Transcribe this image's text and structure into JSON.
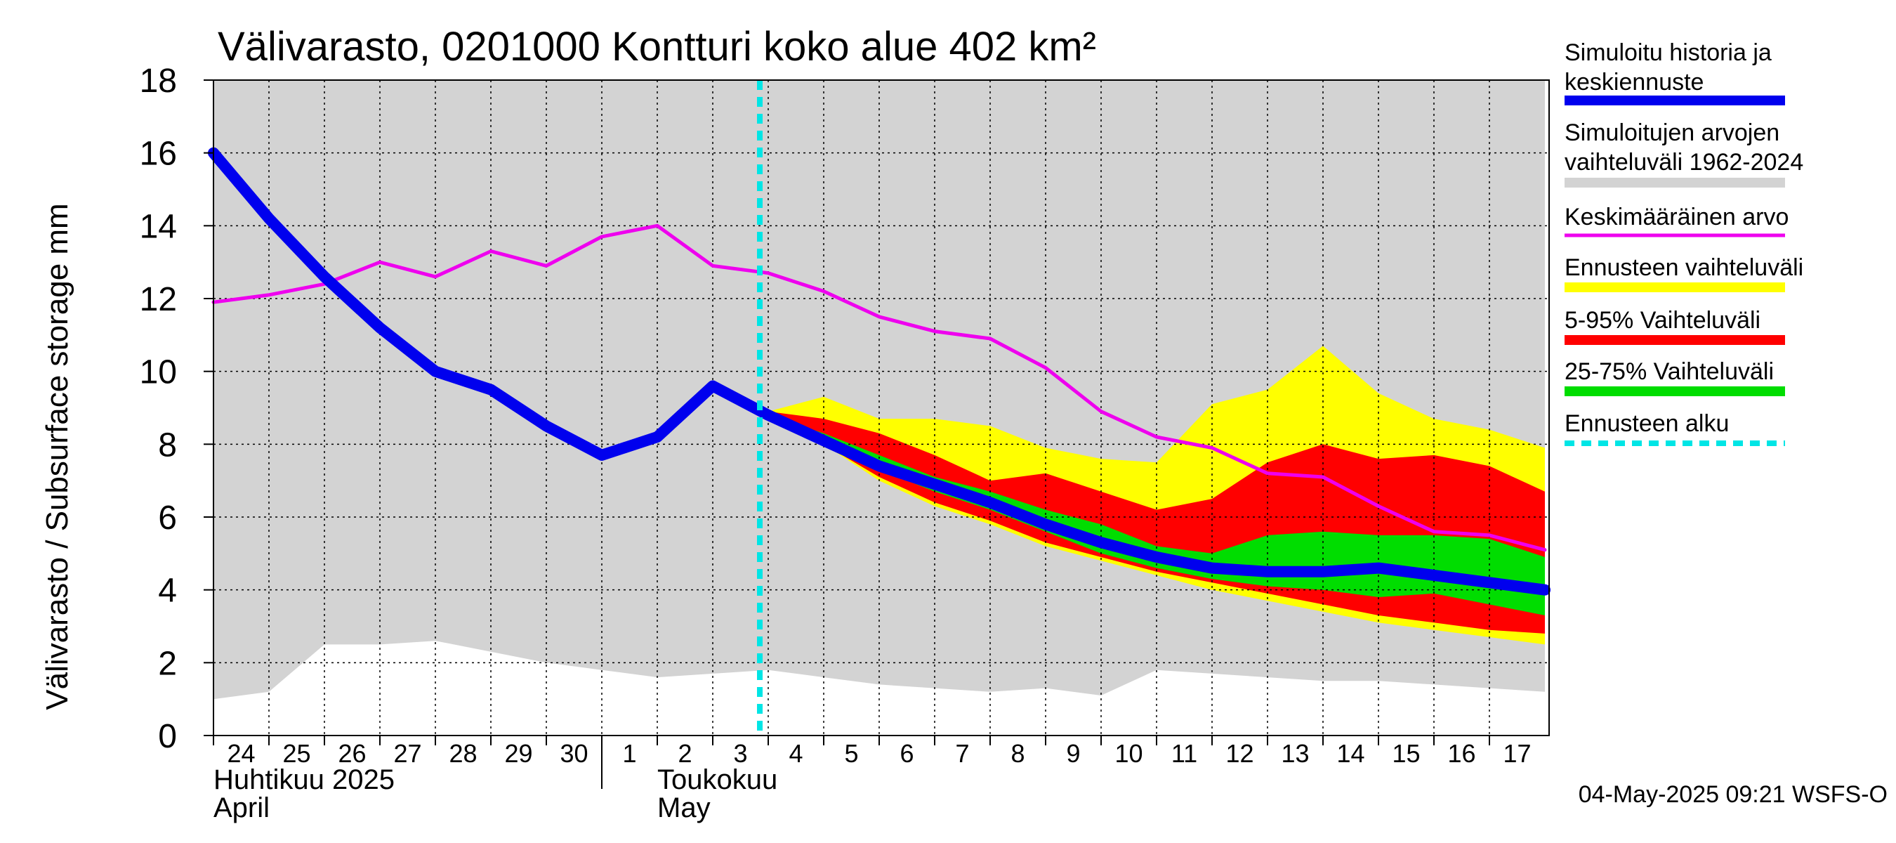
{
  "chart_data": {
    "type": "area",
    "title": "Välivarasto, 0201000 Kontturi koko alue 402 km²",
    "ylabel": "Välivarasto / Subsurface storage  mm",
    "ylim": [
      0,
      18
    ],
    "yticks": [
      0,
      2,
      4,
      6,
      8,
      10,
      12,
      14,
      16,
      18
    ],
    "grid": true,
    "legend_position": "right",
    "x_day_labels": [
      "24",
      "25",
      "26",
      "27",
      "28",
      "29",
      "30",
      "1",
      "2",
      "3",
      "4",
      "5",
      "6",
      "7",
      "8",
      "9",
      "10",
      "11",
      "12",
      "13",
      "14",
      "15",
      "16",
      "17"
    ],
    "month_labels": [
      {
        "line1": "Huhtikuu  2025",
        "line2": "April",
        "start_day": "24"
      },
      {
        "line1": "Toukokuu",
        "line2": "May",
        "start_day": "2"
      }
    ],
    "forecast_start": "4",
    "colors": {
      "history_band": "#d3d3d3",
      "simulated": "#0000ee",
      "mean": "#ee00ee",
      "forecast_range": "#ffff00",
      "p5_95": "#ff0000",
      "p25_75": "#00dd00",
      "forecast_start": "#00e5e5"
    },
    "series": [
      {
        "name": "Simuloitujen arvojen vaihteluväli 1962-2024",
        "type": "band",
        "x": [
          "24",
          "25",
          "26",
          "27",
          "28",
          "29",
          "30",
          "1",
          "2",
          "3",
          "4",
          "5",
          "6",
          "7",
          "8",
          "9",
          "10",
          "11",
          "12",
          "13",
          "14",
          "15",
          "16",
          "17",
          "18"
        ],
        "low": [
          1.0,
          1.2,
          2.5,
          2.5,
          2.6,
          2.3,
          2.0,
          1.8,
          1.6,
          1.7,
          1.8,
          1.6,
          1.4,
          1.3,
          1.2,
          1.3,
          1.1,
          1.8,
          1.7,
          1.6,
          1.5,
          1.5,
          1.4,
          1.3,
          1.2
        ],
        "high": [
          18,
          18,
          18,
          18,
          18,
          18,
          18,
          18,
          18,
          18,
          18,
          18,
          18,
          18,
          18,
          18,
          18,
          18,
          18,
          18,
          18,
          18,
          18,
          18,
          18
        ]
      },
      {
        "name": "Ennusteen vaihteluväli",
        "type": "band",
        "x": [
          "4",
          "5",
          "6",
          "7",
          "8",
          "9",
          "10",
          "11",
          "12",
          "13",
          "14",
          "15",
          "16",
          "17",
          "18"
        ],
        "low": [
          8.8,
          8.0,
          7.0,
          6.3,
          5.8,
          5.2,
          4.8,
          4.4,
          4.0,
          3.7,
          3.4,
          3.1,
          2.9,
          2.7,
          2.5
        ],
        "high": [
          8.9,
          9.3,
          8.7,
          8.7,
          8.5,
          7.9,
          7.6,
          7.5,
          9.1,
          9.5,
          10.7,
          9.4,
          8.7,
          8.4,
          7.9
        ]
      },
      {
        "name": "5-95% Vaihteluväli",
        "type": "band",
        "x": [
          "4",
          "5",
          "6",
          "7",
          "8",
          "9",
          "10",
          "11",
          "12",
          "13",
          "14",
          "15",
          "16",
          "17",
          "18"
        ],
        "low": [
          8.8,
          8.0,
          7.1,
          6.4,
          5.9,
          5.3,
          4.9,
          4.5,
          4.2,
          3.9,
          3.6,
          3.3,
          3.1,
          2.9,
          2.8
        ],
        "high": [
          8.9,
          8.7,
          8.3,
          7.7,
          7.0,
          7.2,
          6.7,
          6.2,
          6.5,
          7.5,
          8.0,
          7.6,
          7.7,
          7.4,
          6.7
        ]
      },
      {
        "name": "25-75% Vaihteluväli",
        "type": "band",
        "x": [
          "4",
          "5",
          "6",
          "7",
          "8",
          "9",
          "10",
          "11",
          "12",
          "13",
          "14",
          "15",
          "16",
          "17",
          "18"
        ],
        "low": [
          8.8,
          8.0,
          7.3,
          6.7,
          6.2,
          5.6,
          5.0,
          4.6,
          4.3,
          4.1,
          4.0,
          3.8,
          3.9,
          3.6,
          3.3
        ],
        "high": [
          8.8,
          8.3,
          7.7,
          7.1,
          6.7,
          6.2,
          5.8,
          5.2,
          5.0,
          5.5,
          5.6,
          5.5,
          5.5,
          5.4,
          4.9
        ]
      },
      {
        "name": "Keskimääräinen arvo",
        "type": "line",
        "x": [
          "24",
          "25",
          "26",
          "27",
          "28",
          "29",
          "30",
          "1",
          "2",
          "3",
          "4",
          "5",
          "6",
          "7",
          "8",
          "9",
          "10",
          "11",
          "12",
          "13",
          "14",
          "15",
          "16",
          "17",
          "18"
        ],
        "values": [
          11.9,
          12.1,
          12.4,
          13.0,
          12.6,
          13.3,
          12.9,
          13.7,
          14.0,
          12.9,
          12.7,
          12.2,
          11.5,
          11.1,
          10.9,
          10.1,
          8.9,
          8.2,
          7.9,
          7.2,
          7.1,
          6.3,
          5.6,
          5.5,
          5.1
        ]
      },
      {
        "name": "Simuloitu historia ja keskiennuste",
        "type": "line",
        "x": [
          "24",
          "25",
          "26",
          "27",
          "28",
          "29",
          "30",
          "1",
          "2",
          "3",
          "4",
          "5",
          "6",
          "7",
          "8",
          "9",
          "10",
          "11",
          "12",
          "13",
          "14",
          "15",
          "16",
          "17",
          "18"
        ],
        "values": [
          16.0,
          14.2,
          12.6,
          11.2,
          10.0,
          9.5,
          8.5,
          7.7,
          8.2,
          9.6,
          8.8,
          8.1,
          7.4,
          6.9,
          6.4,
          5.8,
          5.3,
          4.9,
          4.6,
          4.5,
          4.5,
          4.6,
          4.4,
          4.2,
          4.0
        ]
      }
    ],
    "legend": [
      {
        "label": "Simuloitu historia ja keskiennuste",
        "color": "#0000ee",
        "style": "thick"
      },
      {
        "label": "Simuloitujen arvojen vaihteluväli 1962-2024",
        "color": "#d3d3d3",
        "style": "thick"
      },
      {
        "label": "Keskimääräinen arvo",
        "color": "#ee00ee",
        "style": "thin"
      },
      {
        "label": "Ennusteen vaihteluväli",
        "color": "#ffff00",
        "style": "thick"
      },
      {
        "label": "5-95% Vaihteluväli",
        "color": "#ff0000",
        "style": "thick"
      },
      {
        "label": "25-75% Vaihteluväli",
        "color": "#00dd00",
        "style": "thick"
      },
      {
        "label": "Ennusteen alku",
        "color": "#00e5e5",
        "style": "dashed"
      }
    ]
  },
  "legend_text": {
    "l0a": "Simuloitu historia ja",
    "l0b": "keskiennuste",
    "l1a": "Simuloitujen arvojen",
    "l1b": "vaihteluväli 1962-2024",
    "l2": "Keskimääräinen arvo",
    "l3": "Ennusteen vaihteluväli",
    "l4": "5-95% Vaihteluväli",
    "l5": "25-75% Vaihteluväli",
    "l6": "Ennusteen alku"
  },
  "footer": "04-May-2025 09:21 WSFS-O"
}
